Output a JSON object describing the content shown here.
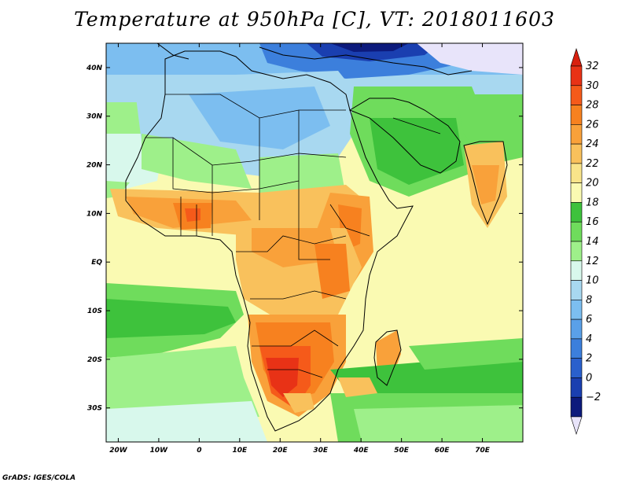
{
  "title": "Temperature at 950hPa [C], VT: 2018011603",
  "credit": "GrADS: IGES/COLA",
  "map": {
    "lon_range": [
      -23,
      80
    ],
    "lat_range": [
      -37,
      45
    ],
    "lon_ticks": [
      {
        "value": -20,
        "label": "20W"
      },
      {
        "value": -10,
        "label": "10W"
      },
      {
        "value": 0,
        "label": "0"
      },
      {
        "value": 10,
        "label": "10E"
      },
      {
        "value": 20,
        "label": "20E"
      },
      {
        "value": 30,
        "label": "30E"
      },
      {
        "value": 40,
        "label": "40E"
      },
      {
        "value": 50,
        "label": "50E"
      },
      {
        "value": 60,
        "label": "60E"
      },
      {
        "value": 70,
        "label": "70E"
      }
    ],
    "lat_ticks": [
      {
        "value": 40,
        "label": "40N"
      },
      {
        "value": 30,
        "label": "30N"
      },
      {
        "value": 20,
        "label": "20N"
      },
      {
        "value": 10,
        "label": "10N"
      },
      {
        "value": 0,
        "label": "EQ"
      },
      {
        "value": -10,
        "label": "10S"
      },
      {
        "value": -20,
        "label": "20S"
      },
      {
        "value": -30,
        "label": "30S"
      }
    ]
  },
  "colorbar": {
    "levels": [
      {
        "value": 32,
        "label": "32",
        "color": "#e83216"
      },
      {
        "value": 30,
        "label": "30",
        "color": "#f55a1a"
      },
      {
        "value": 28,
        "label": "28",
        "color": "#f7811f"
      },
      {
        "value": 26,
        "label": "26",
        "color": "#f9a13a"
      },
      {
        "value": 24,
        "label": "24",
        "color": "#f9c15c"
      },
      {
        "value": 22,
        "label": "22",
        "color": "#f9e48a"
      },
      {
        "value": 20,
        "label": "20",
        "color": "#fafab2"
      },
      {
        "value": 18,
        "label": "18",
        "color": "#3ec23c"
      },
      {
        "value": 16,
        "label": "16",
        "color": "#6fdc5c"
      },
      {
        "value": 14,
        "label": "14",
        "color": "#9ef08a"
      },
      {
        "value": 12,
        "label": "12",
        "color": "#d8f8ec"
      },
      {
        "value": 10,
        "label": "10",
        "color": "#a8d8f0"
      },
      {
        "value": 8,
        "label": "8",
        "color": "#7cbef0"
      },
      {
        "value": 6,
        "label": "6",
        "color": "#5aa0e8"
      },
      {
        "value": 4,
        "label": "4",
        "color": "#3c7fdc"
      },
      {
        "value": 2,
        "label": "2",
        "color": "#2a60cc"
      },
      {
        "value": 0,
        "label": "0",
        "color": "#1a3fb0"
      },
      {
        "value": -2,
        "label": "−2",
        "color": "#0c1a7c"
      }
    ],
    "top_arrow_color": "#d8200e",
    "bottom_arrow_color": "#e8e4fa"
  }
}
